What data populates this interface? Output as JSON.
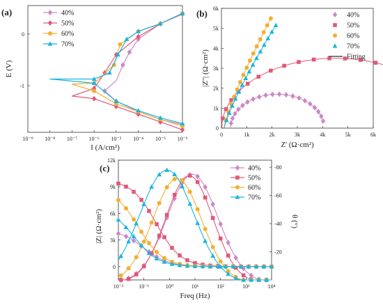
{
  "colors": {
    "40%": "#cc88c4",
    "50%": "#e05878",
    "60%": "#f0b030",
    "70%": "#19b4df",
    "fitting": "#2a2a2a"
  },
  "chart_data": [
    {
      "id": "a",
      "type": "line",
      "panel_label": "(a)",
      "xlabel": "I (A/cm²)",
      "ylabel": "E (V)",
      "x_scale": "log",
      "xlim": [
        1e-09,
        0.01
      ],
      "ylim": [
        -1.9,
        0.55
      ],
      "x_ticks": [
        1e-09,
        1e-08,
        1e-07,
        1e-06,
        1e-05,
        0.0001,
        0.001,
        0.01
      ],
      "x_tick_labels": [
        "10⁻⁹",
        "10⁻⁸",
        "10⁻⁷",
        "10⁻⁶",
        "10⁻⁵",
        "10⁻⁴",
        "10⁻³",
        "10⁻²"
      ],
      "y_ticks": [
        -1,
        0
      ],
      "y_tick_labels": [
        "-1",
        "0"
      ],
      "legend": "top-left",
      "series": [
        {
          "name": "40%",
          "corr_potential_v": -0.9,
          "corr_current": 1e-05,
          "anodic_points": [
            [
              1e-05,
              -0.9
            ],
            [
              2e-05,
              -0.6
            ],
            [
              4e-05,
              -0.35
            ],
            [
              0.0001,
              -0.1
            ],
            [
              0.001,
              0.2
            ],
            [
              0.01,
              0.38
            ]
          ],
          "cathodic_points": [
            [
              1e-05,
              -0.9
            ],
            [
              3e-06,
              -1.1
            ],
            [
              1e-05,
              -1.3
            ],
            [
              0.0001,
              -1.5
            ],
            [
              0.001,
              -1.65
            ],
            [
              0.01,
              -1.75
            ]
          ]
        },
        {
          "name": "50%",
          "corr_potential_v": -1.2,
          "corr_current": 1e-07,
          "anodic_points": [
            [
              1e-07,
              -1.2
            ],
            [
              1e-06,
              -1.05
            ],
            [
              3e-06,
              -0.75
            ],
            [
              1e-05,
              -0.4
            ],
            [
              0.0001,
              -0.05
            ],
            [
              0.001,
              0.2
            ],
            [
              0.01,
              0.4
            ]
          ],
          "cathodic_points": [
            [
              1e-07,
              -1.2
            ],
            [
              1e-06,
              -1.25
            ],
            [
              1e-05,
              -1.4
            ],
            [
              0.0001,
              -1.55
            ],
            [
              0.001,
              -1.7
            ],
            [
              0.01,
              -1.85
            ]
          ]
        },
        {
          "name": "60%",
          "corr_potential_v": -0.97,
          "corr_current": 1e-07,
          "anodic_points": [
            [
              1e-07,
              -0.97
            ],
            [
              1e-06,
              -0.95
            ],
            [
              8e-06,
              -0.6
            ],
            [
              1.5e-05,
              -0.2
            ],
            [
              0.0001,
              0.05
            ],
            [
              0.001,
              0.2
            ],
            [
              0.01,
              0.4
            ]
          ],
          "cathodic_points": [
            [
              1e-07,
              -0.97
            ],
            [
              1e-06,
              -1.1
            ],
            [
              1e-05,
              -1.35
            ],
            [
              0.0001,
              -1.5
            ],
            [
              0.001,
              -1.65
            ],
            [
              0.01,
              -1.78
            ]
          ]
        },
        {
          "name": "70%",
          "corr_potential_v": -0.87,
          "corr_current": 1e-08,
          "anodic_points": [
            [
              1e-08,
              -0.87
            ],
            [
              1e-06,
              -0.87
            ],
            [
              5e-06,
              -0.75
            ],
            [
              1.2e-05,
              -0.4
            ],
            [
              3e-05,
              -0.1
            ],
            [
              0.0001,
              0.05
            ],
            [
              0.001,
              0.2
            ],
            [
              0.01,
              0.4
            ]
          ],
          "cathodic_points": [
            [
              1e-08,
              -0.87
            ],
            [
              1e-06,
              -0.95
            ],
            [
              1e-05,
              -1.3
            ],
            [
              0.0001,
              -1.48
            ],
            [
              0.001,
              -1.62
            ],
            [
              0.01,
              -1.73
            ]
          ]
        }
      ]
    },
    {
      "id": "b",
      "type": "scatter",
      "panel_label": "(b)",
      "xlabel": "Z' (Ω·cm²)",
      "ylabel": "|Z''| (Ω·cm²)",
      "xlim": [
        0,
        6000
      ],
      "ylim": [
        0,
        6000
      ],
      "x_ticks": [
        0,
        1000,
        2000,
        3000,
        4000,
        5000,
        6000
      ],
      "x_tick_labels": [
        "0",
        "1k",
        "2k",
        "3k",
        "4k",
        "5k",
        "6k"
      ],
      "y_ticks": [
        0,
        1000,
        2000,
        3000,
        4000,
        5000,
        6000
      ],
      "y_tick_labels": [
        "0",
        "1k",
        "2k",
        "3k",
        "4k",
        "5k",
        "6k"
      ],
      "legend": "top-right",
      "fit_label": "Fitting",
      "series": [
        {
          "name": "40%",
          "marker": "diamond",
          "shape": "arc",
          "arc_center_x": 2200,
          "arc_radius": 1850,
          "arc_height": 1700,
          "arc_end_deg": 12
        },
        {
          "name": "50%",
          "marker": "square",
          "shape": "arc",
          "arc_center_x": 4500,
          "arc_radius": 4500,
          "arc_height": 3500,
          "arc_end_deg": 22
        },
        {
          "name": "60%",
          "marker": "circle",
          "shape": "line",
          "z_re_end": 1950,
          "z_im_end": 5500
        },
        {
          "name": "70%",
          "marker": "triangle",
          "shape": "line",
          "z_re_end": 2150,
          "z_im_end": 5150
        }
      ]
    },
    {
      "id": "c",
      "type": "line",
      "panel_label": "(c)",
      "xlabel": "Freq (Hz)",
      "ylabel": "|Z| (Ω·cm²)",
      "ylabel_right": "θ (°)",
      "x_scale": "log",
      "xlim": [
        0.01,
        10000
      ],
      "ylim": [
        -1500,
        12000
      ],
      "y2lim": [
        0,
        -85
      ],
      "x_ticks": [
        0.01,
        0.1,
        1,
        10,
        100,
        1000,
        10000
      ],
      "x_tick_labels": [
        "10⁻²",
        "10⁻¹",
        "10⁰",
        "10¹",
        "10²",
        "10³",
        "10⁴"
      ],
      "y_ticks": [
        0,
        3000,
        6000,
        9000,
        12000
      ],
      "y_tick_labels": [
        "0",
        "3k",
        "6k",
        "9k",
        "12k"
      ],
      "y2_ticks": [
        -20,
        -40,
        -60,
        -80
      ],
      "y2_tick_labels": [
        "-20",
        "-40",
        "-60",
        "-80"
      ],
      "legend": "top-right",
      "series": [
        {
          "name": "40%",
          "marker": "diamond",
          "modulus_low_freq": 4200,
          "modulus_knee_freq": 0.1,
          "phase_peak_deg": -77,
          "phase_peak_freq": 8,
          "phase_width_decades": 1.4
        },
        {
          "name": "50%",
          "marker": "square",
          "modulus_low_freq": 9800,
          "modulus_knee_freq": 0.3,
          "phase_peak_deg": -76,
          "phase_peak_freq": 6,
          "phase_width_decades": 1.3
        },
        {
          "name": "60%",
          "marker": "circle",
          "modulus_low_freq": 9000,
          "modulus_knee_freq": 0.06,
          "phase_peak_deg": -74,
          "phase_peak_freq": 2,
          "phase_width_decades": 1.35
        },
        {
          "name": "70%",
          "marker": "triangle",
          "modulus_low_freq": 6800,
          "modulus_knee_freq": 0.04,
          "phase_peak_deg": -80,
          "phase_peak_freq": 0.8,
          "phase_width_decades": 1.5
        }
      ]
    }
  ]
}
